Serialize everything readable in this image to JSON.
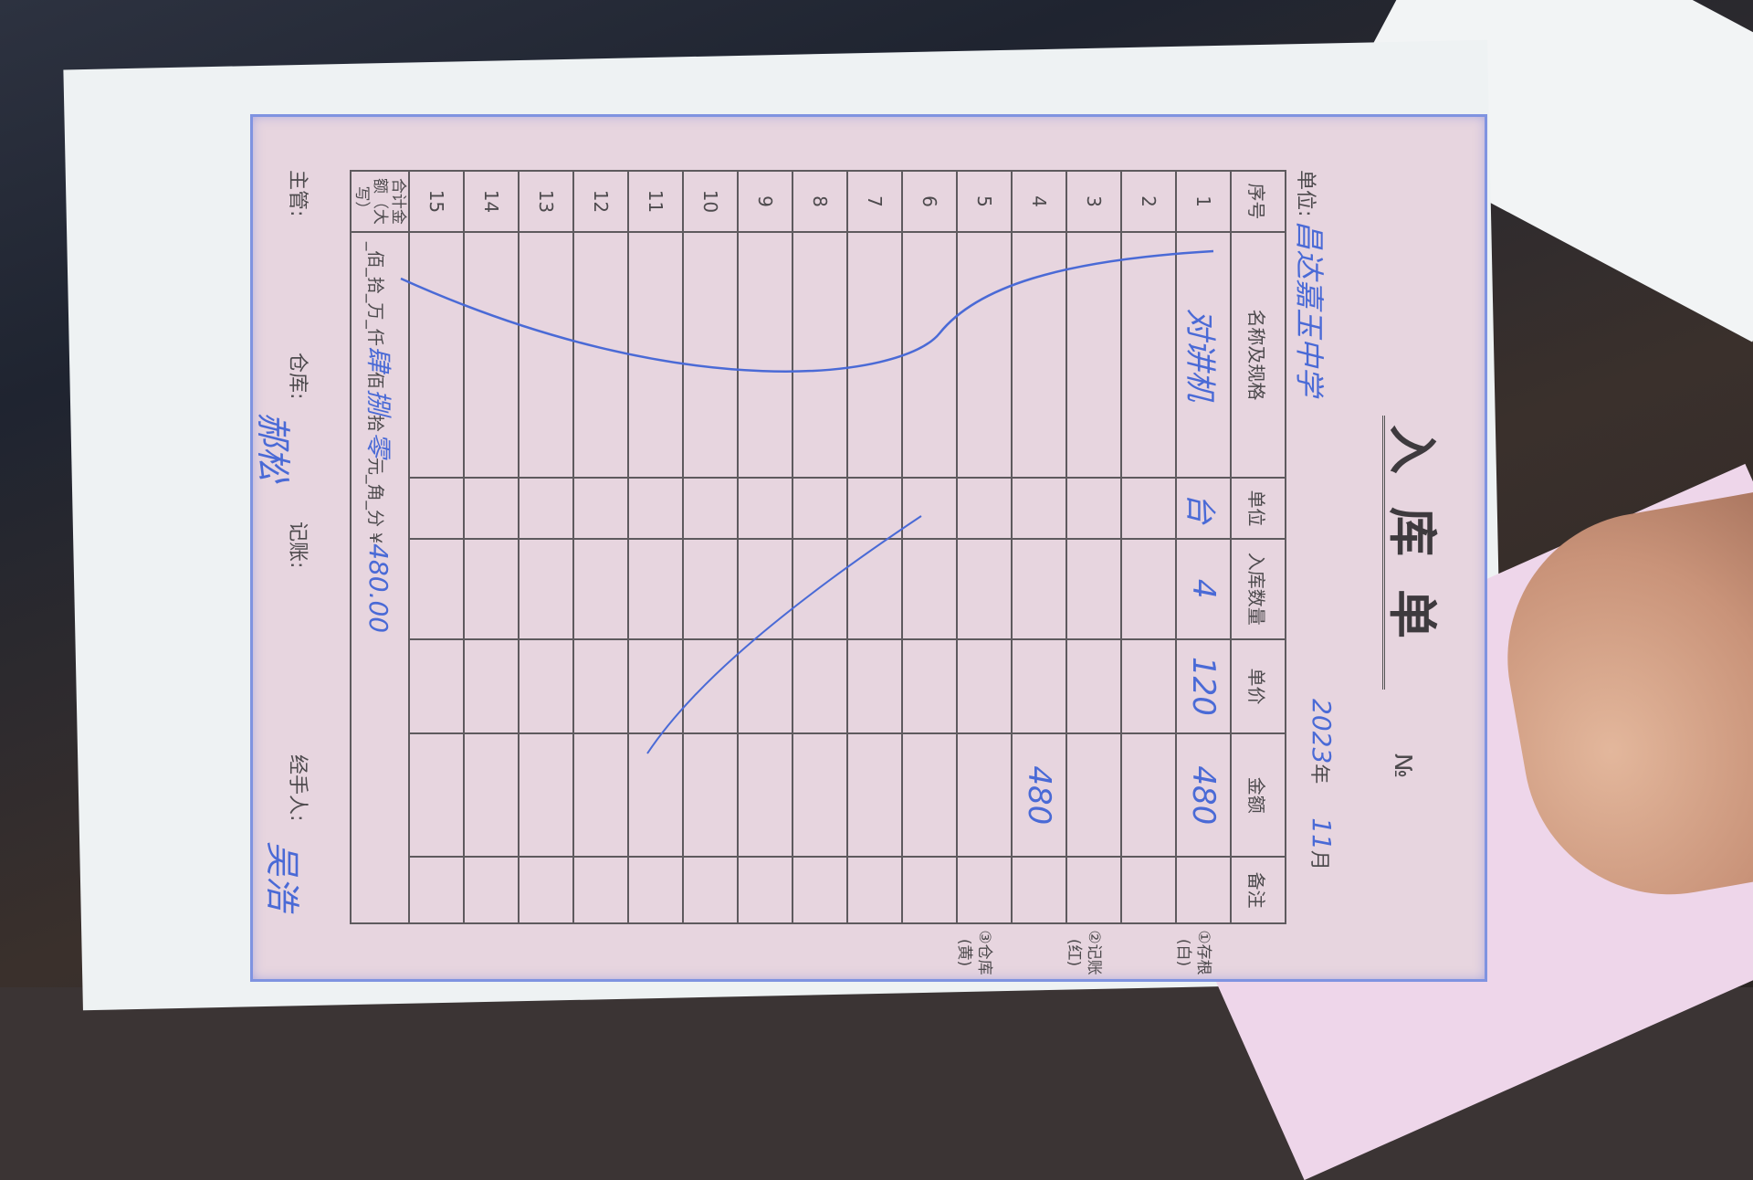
{
  "form": {
    "title": "入库单",
    "number_label": "№",
    "unit_label": "单位:",
    "unit_value": "昌达嘉玉中学",
    "date_year": "2023",
    "date_year_label": "年",
    "date_month": "11",
    "date_month_label": "月",
    "headers": [
      "序号",
      "名称及规格",
      "单位",
      "入库数量",
      "单价",
      "金额",
      "备注"
    ],
    "rows": [
      [
        "1",
        "对讲机",
        "台",
        "4",
        "120",
        "480",
        ""
      ],
      [
        "2",
        "",
        "",
        "",
        "",
        "",
        ""
      ],
      [
        "3",
        "",
        "",
        "",
        "",
        "",
        ""
      ],
      [
        "4",
        "",
        "",
        "",
        "",
        "480",
        ""
      ],
      [
        "5",
        "",
        "",
        "",
        "",
        "",
        ""
      ],
      [
        "6",
        "",
        "",
        "",
        "",
        "",
        ""
      ],
      [
        "7",
        "",
        "",
        "",
        "",
        "",
        ""
      ],
      [
        "8",
        "",
        "",
        "",
        "",
        "",
        ""
      ],
      [
        "9",
        "",
        "",
        "",
        "",
        "",
        ""
      ],
      [
        "10",
        "",
        "",
        "",
        "",
        "",
        ""
      ],
      [
        "11",
        "",
        "",
        "",
        "",
        "",
        ""
      ],
      [
        "12",
        "",
        "",
        "",
        "",
        "",
        ""
      ],
      [
        "13",
        "",
        "",
        "",
        "",
        "",
        ""
      ],
      [
        "14",
        "",
        "",
        "",
        "",
        "",
        ""
      ],
      [
        "15",
        "",
        "",
        "",
        "",
        "",
        ""
      ]
    ],
    "total_label": "合计金额（大写）",
    "total_parts": [
      "_佰_拾_万_仟",
      "肆",
      "佰",
      "捌",
      "拾",
      "零",
      "元_角_分 ¥",
      "480.00"
    ],
    "copies": [
      "①存根(白)",
      "②记账(红)",
      "③仓库(黄)"
    ],
    "footer": {
      "supervisor_label": "主管:",
      "warehouse_label": "仓库:",
      "warehouse_signature": "郝松",
      "accounting_label": "记账:",
      "handler_label": "经手人:",
      "handler_signature": "吴浩"
    }
  },
  "colors": {
    "ink": "#4a6ad6",
    "paper": "#e7d5df",
    "print": "#4d4a4d"
  }
}
